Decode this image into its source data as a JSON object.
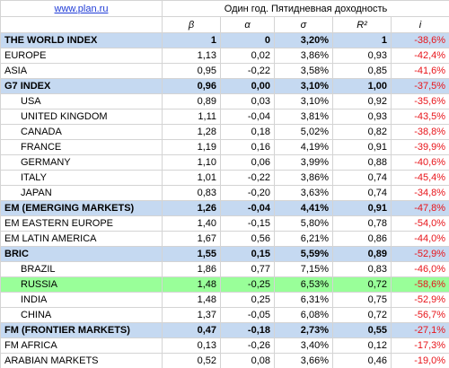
{
  "header": {
    "link": "www.plan.ru",
    "title": "Один год. Пятидневная доходность",
    "columns": [
      "β",
      "α",
      "σ",
      "R²",
      "i"
    ]
  },
  "table": {
    "rows": [
      [
        "THE WORLD INDEX",
        "1",
        "0",
        "3,20%",
        "1",
        "-38,6%"
      ],
      [
        "EUROPE",
        "1,13",
        "0,02",
        "3,86%",
        "0,93",
        "-42,4%"
      ],
      [
        "ASIA",
        "0,95",
        "-0,22",
        "3,58%",
        "0,85",
        "-41,6%"
      ],
      [
        "G7 INDEX",
        "0,96",
        "0,00",
        "3,10%",
        "1,00",
        "-37,5%"
      ],
      [
        "USA",
        "0,89",
        "0,03",
        "3,10%",
        "0,92",
        "-35,6%"
      ],
      [
        "UNITED KINGDOM",
        "1,11",
        "-0,04",
        "3,81%",
        "0,93",
        "-43,5%"
      ],
      [
        "CANADA",
        "1,28",
        "0,18",
        "5,02%",
        "0,82",
        "-38,8%"
      ],
      [
        "FRANCE",
        "1,19",
        "0,16",
        "4,19%",
        "0,91",
        "-39,9%"
      ],
      [
        "GERMANY",
        "1,10",
        "0,06",
        "3,99%",
        "0,88",
        "-40,6%"
      ],
      [
        "ITALY",
        "1,01",
        "-0,22",
        "3,86%",
        "0,74",
        "-45,4%"
      ],
      [
        "JAPAN",
        "0,83",
        "-0,20",
        "3,63%",
        "0,74",
        "-34,8%"
      ],
      [
        "EM (EMERGING MARKETS)",
        "1,26",
        "-0,04",
        "4,41%",
        "0,91",
        "-47,8%"
      ],
      [
        "EM EASTERN EUROPE",
        "1,40",
        "-0,15",
        "5,80%",
        "0,78",
        "-54,0%"
      ],
      [
        "EM LATIN AMERICA",
        "1,67",
        "0,56",
        "6,21%",
        "0,86",
        "-44,0%"
      ],
      [
        "BRIC",
        "1,55",
        "0,15",
        "5,59%",
        "0,89",
        "-52,9%"
      ],
      [
        "BRAZIL",
        "1,86",
        "0,77",
        "7,15%",
        "0,83",
        "-46,0%"
      ],
      [
        "RUSSIA",
        "1,48",
        "-0,25",
        "6,53%",
        "0,72",
        "-58,6%"
      ],
      [
        "INDIA",
        "1,48",
        "0,25",
        "6,31%",
        "0,75",
        "-52,9%"
      ],
      [
        "CHINA",
        "1,37",
        "-0,05",
        "6,08%",
        "0,72",
        "-56,7%"
      ],
      [
        "FM (FRONTIER MARKETS)",
        "0,47",
        "-0,18",
        "2,73%",
        "0,55",
        "-27,1%"
      ],
      [
        "FM AFRICA",
        "0,13",
        "-0,26",
        "3,40%",
        "0,12",
        "-17,3%"
      ],
      [
        "ARABIAN MARKETS",
        "0,52",
        "0,08",
        "3,66%",
        "0,46",
        "-19,0%"
      ]
    ]
  }
}
